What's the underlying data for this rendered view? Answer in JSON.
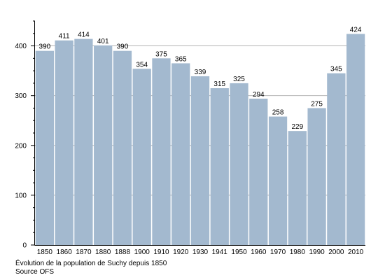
{
  "chart_data": {
    "type": "bar",
    "categories": [
      "1850",
      "1860",
      "1870",
      "1880",
      "1888",
      "1900",
      "1910",
      "1920",
      "1930",
      "1941",
      "1950",
      "1960",
      "1970",
      "1980",
      "1990",
      "2000",
      "2010"
    ],
    "values": [
      390,
      411,
      414,
      401,
      390,
      354,
      375,
      365,
      339,
      315,
      325,
      294,
      258,
      229,
      275,
      345,
      424
    ],
    "ylim": [
      0,
      450
    ],
    "yticks": [
      0,
      100,
      200,
      300,
      400
    ],
    "grid": true,
    "bar_color": "#a3b9cf",
    "grid_color": "#b3b3b3",
    "title": "",
    "xlabel": "",
    "ylabel": ""
  },
  "caption": {
    "line1": "Évolution de la population de Suchy depuis 1850",
    "line2": "Source OFS"
  }
}
